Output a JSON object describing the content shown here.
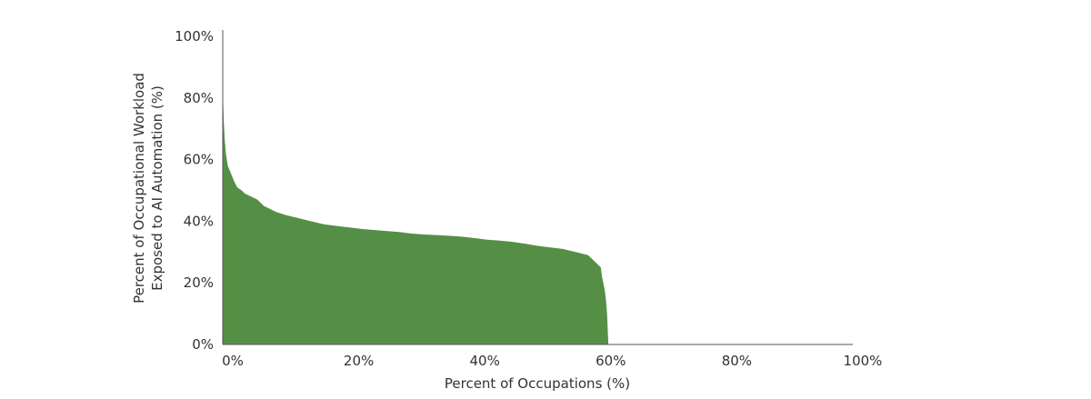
{
  "chart_data": {
    "type": "area",
    "title": "",
    "xlabel": "Percent of Occupations (%)",
    "ylabel_lines": [
      "Percent of Occupational Workload",
      "Exposed to AI Automation (%)"
    ],
    "xlim": [
      0,
      100
    ],
    "ylim": [
      0,
      100
    ],
    "x_ticks": [
      "0%",
      "20%",
      "40%",
      "60%",
      "80%",
      "100%"
    ],
    "y_ticks": [
      "0%",
      "20%",
      "40%",
      "60%",
      "80%",
      "100%"
    ],
    "grid": false,
    "legend": "none",
    "fill_color": "#558f46",
    "axis_color": "#555555",
    "series": [
      {
        "x": [
          0,
          0.15,
          0.3,
          0.5,
          0.8,
          1.2,
          1.8,
          2.3,
          3.0,
          3.5,
          4.5,
          5.5,
          6.5,
          7.5,
          8.5,
          10,
          12,
          14,
          16,
          18,
          20,
          22,
          25,
          28,
          30,
          32,
          35,
          38,
          40,
          42,
          44,
          46,
          48,
          50,
          52,
          54,
          55,
          56,
          57,
          58,
          58.5,
          59,
          59.5,
          60,
          60.2,
          60.4,
          60.6,
          60.8,
          61,
          61.1,
          61.2
        ],
        "y": [
          84,
          73,
          67,
          62,
          58,
          56,
          53,
          51,
          50,
          49,
          48,
          47,
          45,
          44,
          43,
          42,
          41,
          40,
          39,
          38.5,
          38,
          37.5,
          37,
          36.5,
          36,
          35.7,
          35.4,
          35,
          34.5,
          34,
          33.7,
          33.3,
          32.7,
          32,
          31.5,
          31,
          30.5,
          30,
          29.5,
          29,
          28,
          27,
          26,
          25,
          22,
          20,
          18,
          15,
          10,
          5,
          0
        ]
      }
    ]
  }
}
